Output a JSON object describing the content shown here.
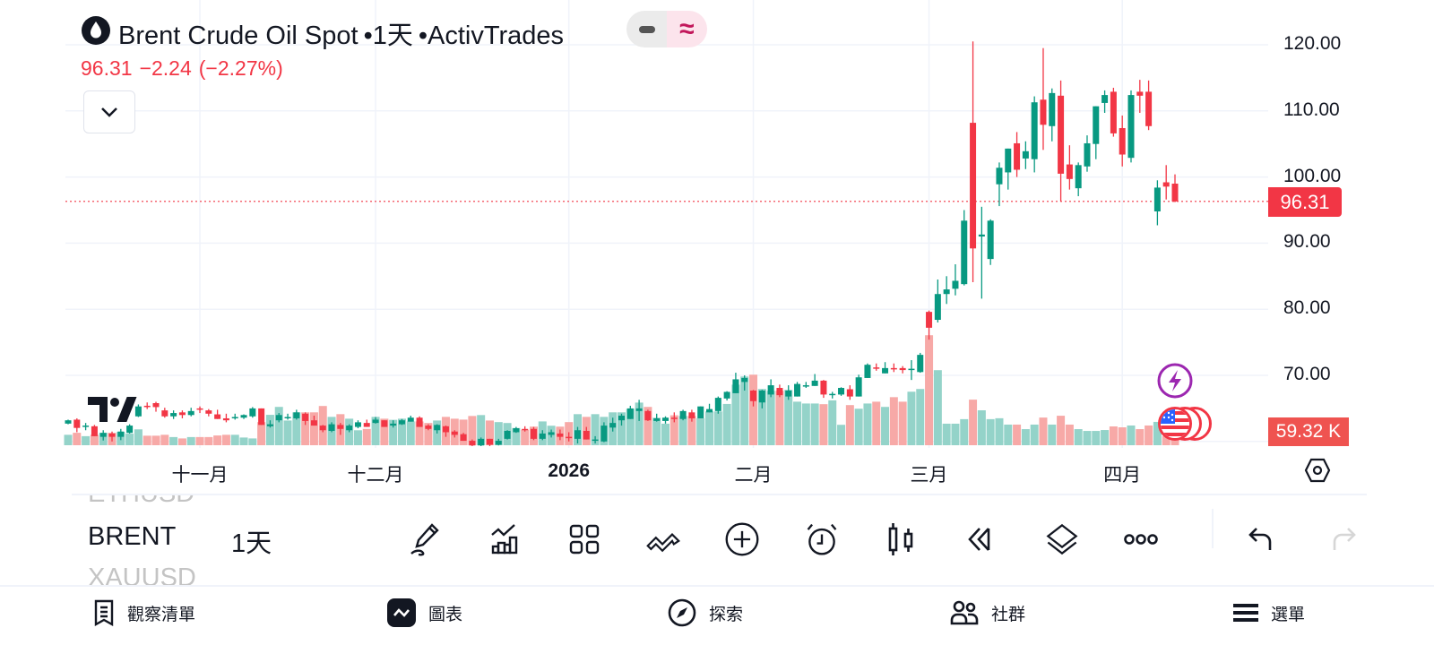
{
  "header": {
    "symbol_title": "Brent Crude Oil Spot",
    "interval": "•1天",
    "exchange": "•ActivTrades",
    "price": "96.31",
    "change": "−2.24",
    "change_pct": "(−2.27%)",
    "toggle_right_glyph": "≈"
  },
  "colors": {
    "up": "#089981",
    "down": "#f23645",
    "up_volume": "#94d3c9",
    "down_volume": "#f7a9a7",
    "grid": "#f0f3fa",
    "lightning": "#9c27b0"
  },
  "chart_data": {
    "type": "candlestick",
    "title": "Brent Crude Oil Spot, 1D, ActivTrades",
    "ylim": [
      60,
      120
    ],
    "y_ticks": [
      "120.00",
      "110.00",
      "100.00",
      "90.00",
      "80.00",
      "70.00"
    ],
    "y_tick_values": [
      120,
      110,
      100,
      90,
      80,
      70,
      60
    ],
    "x_ticks": [
      {
        "label": "十一月",
        "bar": 15
      },
      {
        "label": "十二月",
        "bar": 35
      },
      {
        "label": "2026",
        "bar": 57,
        "year": true
      },
      {
        "label": "二月",
        "bar": 78
      },
      {
        "label": "三月",
        "bar": 98
      },
      {
        "label": "四月",
        "bar": 120
      }
    ],
    "last_price": 96.31,
    "last_price_label": "96.31",
    "volume_label": "59.32 K",
    "volume_unit": "K",
    "candle_fields": [
      "open",
      "high",
      "low",
      "close",
      "volume"
    ],
    "candles": [
      [
        62.7,
        63.3,
        62.6,
        63.2,
        46
      ],
      [
        63.3,
        63.5,
        61.4,
        62.05,
        55
      ],
      [
        62.3,
        62.8,
        61.7,
        62.4,
        40
      ],
      [
        62.3,
        62.5,
        60.8,
        60.8,
        46
      ],
      [
        60.7,
        61.7,
        60.15,
        61.3,
        55
      ],
      [
        61.2,
        61.5,
        60.0,
        60.7,
        55
      ],
      [
        60.7,
        61.9,
        60.2,
        61.5,
        59
      ],
      [
        61.3,
        62.6,
        61.2,
        62.4,
        51
      ],
      [
        63.8,
        65.6,
        63.7,
        65.3,
        70
      ],
      [
        65.4,
        65.9,
        64.9,
        65.2,
        42
      ],
      [
        65.8,
        66.0,
        64.5,
        65.2,
        42
      ],
      [
        64.7,
        65.1,
        63.6,
        63.8,
        46
      ],
      [
        63.8,
        64.7,
        63.4,
        64.3,
        36
      ],
      [
        64.4,
        64.7,
        63.5,
        64.0,
        30
      ],
      [
        64.0,
        65.1,
        63.8,
        64.6,
        36
      ],
      [
        65.0,
        65.3,
        64.3,
        64.8,
        36
      ],
      [
        64.7,
        64.9,
        63.8,
        64.2,
        36
      ],
      [
        64.1,
        64.8,
        63.4,
        63.4,
        43
      ],
      [
        63.5,
        64.2,
        62.9,
        63.2,
        46
      ],
      [
        63.6,
        64.2,
        63.3,
        63.7,
        46
      ],
      [
        63.6,
        64.1,
        63.4,
        64.0,
        34
      ],
      [
        63.8,
        65.2,
        63.6,
        65.0,
        30
      ],
      [
        65.0,
        65.0,
        62.5,
        62.5,
        102
      ],
      [
        62.3,
        63.2,
        62.1,
        62.6,
        134
      ],
      [
        63.2,
        64.3,
        62.9,
        64.0,
        169
      ],
      [
        63.6,
        64.2,
        63.3,
        63.7,
        109
      ],
      [
        63.5,
        64.8,
        63.3,
        64.4,
        145
      ],
      [
        64.2,
        64.4,
        62.5,
        63.1,
        145
      ],
      [
        63.2,
        63.9,
        62.4,
        62.4,
        145
      ],
      [
        62.4,
        62.5,
        61.4,
        61.7,
        173
      ],
      [
        61.6,
        62.9,
        61.4,
        62.6,
        125
      ],
      [
        62.5,
        62.8,
        61.0,
        61.9,
        137
      ],
      [
        61.7,
        62.6,
        61.4,
        62.4,
        117
      ],
      [
        62.2,
        63.2,
        62.0,
        62.9,
        66
      ],
      [
        62.8,
        63.3,
        62.2,
        62.2,
        72
      ],
      [
        62.8,
        63.7,
        62.7,
        63.3,
        125
      ],
      [
        63.2,
        63.2,
        62.2,
        62.2,
        117
      ],
      [
        62.4,
        63.2,
        62.1,
        62.7,
        112
      ],
      [
        62.6,
        63.4,
        62.5,
        63.2,
        117
      ],
      [
        63.0,
        63.9,
        63.0,
        63.6,
        105
      ],
      [
        63.6,
        63.8,
        62.2,
        62.2,
        105
      ],
      [
        62.4,
        62.6,
        61.7,
        61.9,
        98
      ],
      [
        61.7,
        62.6,
        61.2,
        62.5,
        109
      ],
      [
        62.3,
        62.4,
        60.7,
        61.4,
        125
      ],
      [
        61.5,
        61.7,
        60.6,
        61.0,
        117
      ],
      [
        61.1,
        61.3,
        60.1,
        60.1,
        113
      ],
      [
        60.1,
        60.3,
        59.3,
        59.4,
        129
      ],
      [
        59.4,
        60.6,
        59.3,
        60.4,
        133
      ],
      [
        60.4,
        60.4,
        59.3,
        59.5,
        109
      ],
      [
        59.5,
        60.4,
        59.4,
        60.1,
        102
      ],
      [
        60.4,
        61.7,
        60.3,
        61.6,
        98
      ],
      [
        61.4,
        62.2,
        61.3,
        62.0,
        76
      ],
      [
        61.9,
        62.3,
        61.5,
        61.8,
        68
      ],
      [
        61.9,
        62.2,
        60.2,
        60.4,
        82
      ],
      [
        60.4,
        61.7,
        60.2,
        61.2,
        105
      ],
      [
        61.0,
        61.8,
        60.6,
        61.4,
        86
      ],
      [
        61.2,
        61.8,
        60.2,
        60.7,
        82
      ],
      [
        60.7,
        61.4,
        60.0,
        60.6,
        102
      ],
      [
        60.4,
        62.2,
        59.7,
        61.7,
        137
      ],
      [
        61.6,
        62.2,
        60.3,
        60.3,
        125
      ],
      [
        60.2,
        60.8,
        59.7,
        60.3,
        137
      ],
      [
        60.0,
        62.9,
        59.9,
        62.4,
        125
      ],
      [
        62.1,
        63.6,
        61.5,
        62.8,
        145
      ],
      [
        63.2,
        64.2,
        62.4,
        63.9,
        145
      ],
      [
        63.4,
        65.4,
        63.4,
        65.0,
        161
      ],
      [
        64.6,
        66.3,
        63.1,
        65.0,
        188
      ],
      [
        64.6,
        64.8,
        63.1,
        63.2,
        169
      ],
      [
        63.1,
        64.2,
        63.0,
        63.5,
        121
      ],
      [
        63.1,
        63.8,
        62.7,
        63.6,
        95
      ],
      [
        63.6,
        64.4,
        62.9,
        63.4,
        132
      ],
      [
        63.4,
        64.8,
        63.2,
        64.6,
        129
      ],
      [
        64.4,
        64.8,
        63.0,
        63.5,
        129
      ],
      [
        63.5,
        65.3,
        63.5,
        65.3,
        119
      ],
      [
        64.4,
        65.7,
        64.4,
        64.9,
        149
      ],
      [
        64.6,
        66.8,
        64.2,
        66.6,
        149
      ],
      [
        66.5,
        67.6,
        66.2,
        67.5,
        182
      ],
      [
        67.3,
        70.4,
        67.3,
        69.4,
        267
      ],
      [
        69.0,
        70.0,
        67.7,
        69.6,
        303
      ],
      [
        67.7,
        67.8,
        65.3,
        66.1,
        311
      ],
      [
        65.9,
        67.8,
        65.0,
        67.7,
        248
      ],
      [
        67.1,
        69.4,
        66.7,
        68.5,
        240
      ],
      [
        68.1,
        68.6,
        66.7,
        67.0,
        240
      ],
      [
        66.8,
        68.5,
        66.3,
        67.7,
        244
      ],
      [
        66.8,
        69.0,
        66.8,
        68.7,
        192
      ],
      [
        68.4,
        69.0,
        68.1,
        68.5,
        184
      ],
      [
        68.4,
        70.2,
        68.4,
        69.2,
        184
      ],
      [
        69.2,
        69.3,
        66.6,
        67.1,
        181
      ],
      [
        67.0,
        67.5,
        66.5,
        67.2,
        198
      ],
      [
        67.1,
        68.2,
        66.9,
        68.1,
        90
      ],
      [
        67.9,
        68.5,
        66.3,
        66.8,
        177
      ],
      [
        66.8,
        70.1,
        66.8,
        69.7,
        161
      ],
      [
        69.6,
        71.8,
        69.6,
        71.6,
        184
      ],
      [
        71.2,
        71.8,
        70.7,
        71.1,
        192
      ],
      [
        70.3,
        72.0,
        70.3,
        71.1,
        169
      ],
      [
        71.1,
        71.8,
        70.5,
        71.0,
        212
      ],
      [
        71.1,
        71.4,
        70.3,
        70.8,
        192
      ],
      [
        70.9,
        72.3,
        69.3,
        71.0,
        236
      ],
      [
        70.5,
        73.4,
        70.4,
        73.1,
        248
      ],
      [
        79.6,
        79.8,
        75.4,
        77.2,
        485
      ],
      [
        78.4,
        84.5,
        78.0,
        82.3,
        331
      ],
      [
        82.3,
        85.0,
        80.8,
        83.0,
        95
      ],
      [
        83.1,
        86.8,
        82.1,
        84.3,
        95
      ],
      [
        83.8,
        95.0,
        83.6,
        93.4,
        115
      ],
      [
        108.2,
        120.5,
        84.1,
        89.2,
        201
      ],
      [
        91.0,
        95.5,
        81.6,
        91.3,
        154
      ],
      [
        87.6,
        93.6,
        86.7,
        93.4,
        115
      ],
      [
        98.9,
        102.2,
        95.6,
        101.4,
        119
      ],
      [
        100.7,
        104.3,
        98.1,
        104.3,
        91
      ],
      [
        105.1,
        106.8,
        100.0,
        101.1,
        91
      ],
      [
        102.8,
        105.4,
        101.2,
        103.9,
        71
      ],
      [
        102.7,
        112.2,
        100.7,
        111.3,
        91
      ],
      [
        111.7,
        119.5,
        104.1,
        107.9,
        122
      ],
      [
        107.7,
        113.4,
        105.4,
        112.7,
        91
      ],
      [
        112.3,
        114.6,
        96.3,
        100.5,
        130
      ],
      [
        101.9,
        104.8,
        98.1,
        99.7,
        91
      ],
      [
        98.3,
        102.2,
        97.1,
        101.8,
        71
      ],
      [
        101.6,
        106.3,
        100.8,
        105.1,
        63
      ],
      [
        105.0,
        110.7,
        102.7,
        110.7,
        63
      ],
      [
        111.2,
        113.1,
        109.7,
        112.4,
        67
      ],
      [
        112.9,
        113.5,
        106.1,
        106.6,
        83
      ],
      [
        107.4,
        109.3,
        101.6,
        103.4,
        79
      ],
      [
        102.9,
        113.1,
        102.2,
        112.4,
        87
      ],
      [
        112.9,
        114.7,
        109.7,
        112.3,
        71
      ],
      [
        112.9,
        114.6,
        107.1,
        107.7,
        87
      ],
      [
        94.8,
        99.5,
        92.7,
        98.4,
        103
      ],
      [
        99.2,
        101.8,
        96.6,
        98.55,
        40
      ],
      [
        99.0,
        100.4,
        96.2,
        96.31,
        59.32
      ]
    ]
  },
  "symbol_switcher": {
    "prev": "ETHUSD",
    "current": "BRENT",
    "next": "XAUUSD"
  },
  "interval_label": "1天",
  "toolbar": [
    "drawing-icon",
    "indicators-icon",
    "layouts-icon",
    "trend-line-icon",
    "add-icon",
    "alert-icon",
    "chart-type-icon",
    "replay-icon",
    "layers-icon",
    "more-icon",
    "undo-icon",
    "redo-icon"
  ],
  "bottom_nav": [
    {
      "label": "觀察清單",
      "icon": "watchlist-icon"
    },
    {
      "label": "圖表",
      "icon": "chart-icon"
    },
    {
      "label": "探索",
      "icon": "compass-icon"
    },
    {
      "label": "社群",
      "icon": "community-icon"
    },
    {
      "label": "選單",
      "icon": "menu-icon"
    }
  ]
}
